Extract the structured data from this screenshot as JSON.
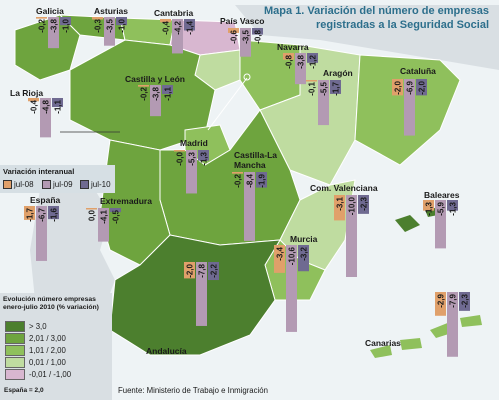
{
  "title": {
    "line1": "Mapa 1. Variación del número de empresas",
    "line2": "registradas a la Seguridad Social"
  },
  "legend": {
    "title": "Variación interanual",
    "items": [
      {
        "label": "jul-08",
        "color": "#e0a06a"
      },
      {
        "label": "jul-09",
        "color": "#b39ab3"
      },
      {
        "label": "jul-10",
        "color": "#6f6a91"
      }
    ]
  },
  "scale": {
    "title": "Evolución número empresas enero-julio 2010 (% variación)",
    "items": [
      {
        "label": "> 3,0",
        "color": "#4c7f2e"
      },
      {
        "label": "2,01 / 3,00",
        "color": "#6ea43e"
      },
      {
        "label": "1,01 / 2,00",
        "color": "#8fc05c"
      },
      {
        "label": "0,01 / 1,00",
        "color": "#bfdca0"
      },
      {
        "label": "-0,01 / -1,00",
        "color": "#d8b7d0"
      }
    ],
    "spain_note": "España = 2,0"
  },
  "source": "Fuente: Ministerio de Trabajo e Inmigración",
  "regions": [
    {
      "id": "galicia",
      "name": "Galicia",
      "values": [
        "-0,2",
        "-3,8",
        "-1,0"
      ]
    },
    {
      "id": "asturias",
      "name": "Asturias",
      "values": [
        "-0,3",
        "-3,5",
        "-1,0"
      ]
    },
    {
      "id": "cantabria",
      "name": "Cantabria",
      "values": [
        "-0,4",
        "-4,2",
        "-1,4"
      ]
    },
    {
      "id": "pais-vasco",
      "name": "País Vasco",
      "values": [
        "-0,6",
        "-3,5",
        "-0,8"
      ]
    },
    {
      "id": "navarra",
      "name": "Navarra",
      "values": [
        "-0,8",
        "-3,8",
        "-1,2"
      ]
    },
    {
      "id": "la-rioja",
      "name": "La Rioja",
      "values": [
        "-0,4",
        "-4,8",
        "-1,1"
      ]
    },
    {
      "id": "castilla-leon",
      "name": "Castilla y León",
      "values": [
        "-0,2",
        "-3,8",
        "-1,1"
      ]
    },
    {
      "id": "aragon",
      "name": "Aragón",
      "values": [
        "-0,1",
        "-5,5",
        "-1,7"
      ]
    },
    {
      "id": "cataluna",
      "name": "Cataluña",
      "values": [
        "-2,0",
        "-6,9",
        "-2,0"
      ]
    },
    {
      "id": "madrid",
      "name": "Madrid",
      "values": [
        "-0,0",
        "-5,3",
        "-1,3"
      ]
    },
    {
      "id": "castilla-la-mancha",
      "name": "Castilla-La Mancha",
      "values": [
        "-0,2",
        "-8,4",
        "-1,9"
      ]
    },
    {
      "id": "c-valenciana",
      "name": "Com. Valenciana",
      "values": [
        "-3,1",
        "-10,0",
        "-2,3"
      ]
    },
    {
      "id": "extremadura",
      "name": "Extremadura",
      "values": [
        "0,0",
        "-4,1",
        "-0,5"
      ]
    },
    {
      "id": "espana",
      "name": "España",
      "values": [
        "-1,7",
        "-6,7",
        "-1,6"
      ]
    },
    {
      "id": "baleares",
      "name": "Baleares",
      "values": [
        "-1,3",
        "-5,9",
        "-1,3"
      ]
    },
    {
      "id": "murcia",
      "name": "Murcia",
      "values": [
        "-3,4",
        "-10,6",
        "-3,2"
      ]
    },
    {
      "id": "andalucia",
      "name": "Andalucía",
      "values": [
        "-2,0",
        "-7,8",
        "-2,2"
      ]
    },
    {
      "id": "canarias",
      "name": "Canarias",
      "values": [
        "-2,9",
        "-7,9",
        "-2,3"
      ]
    }
  ]
}
